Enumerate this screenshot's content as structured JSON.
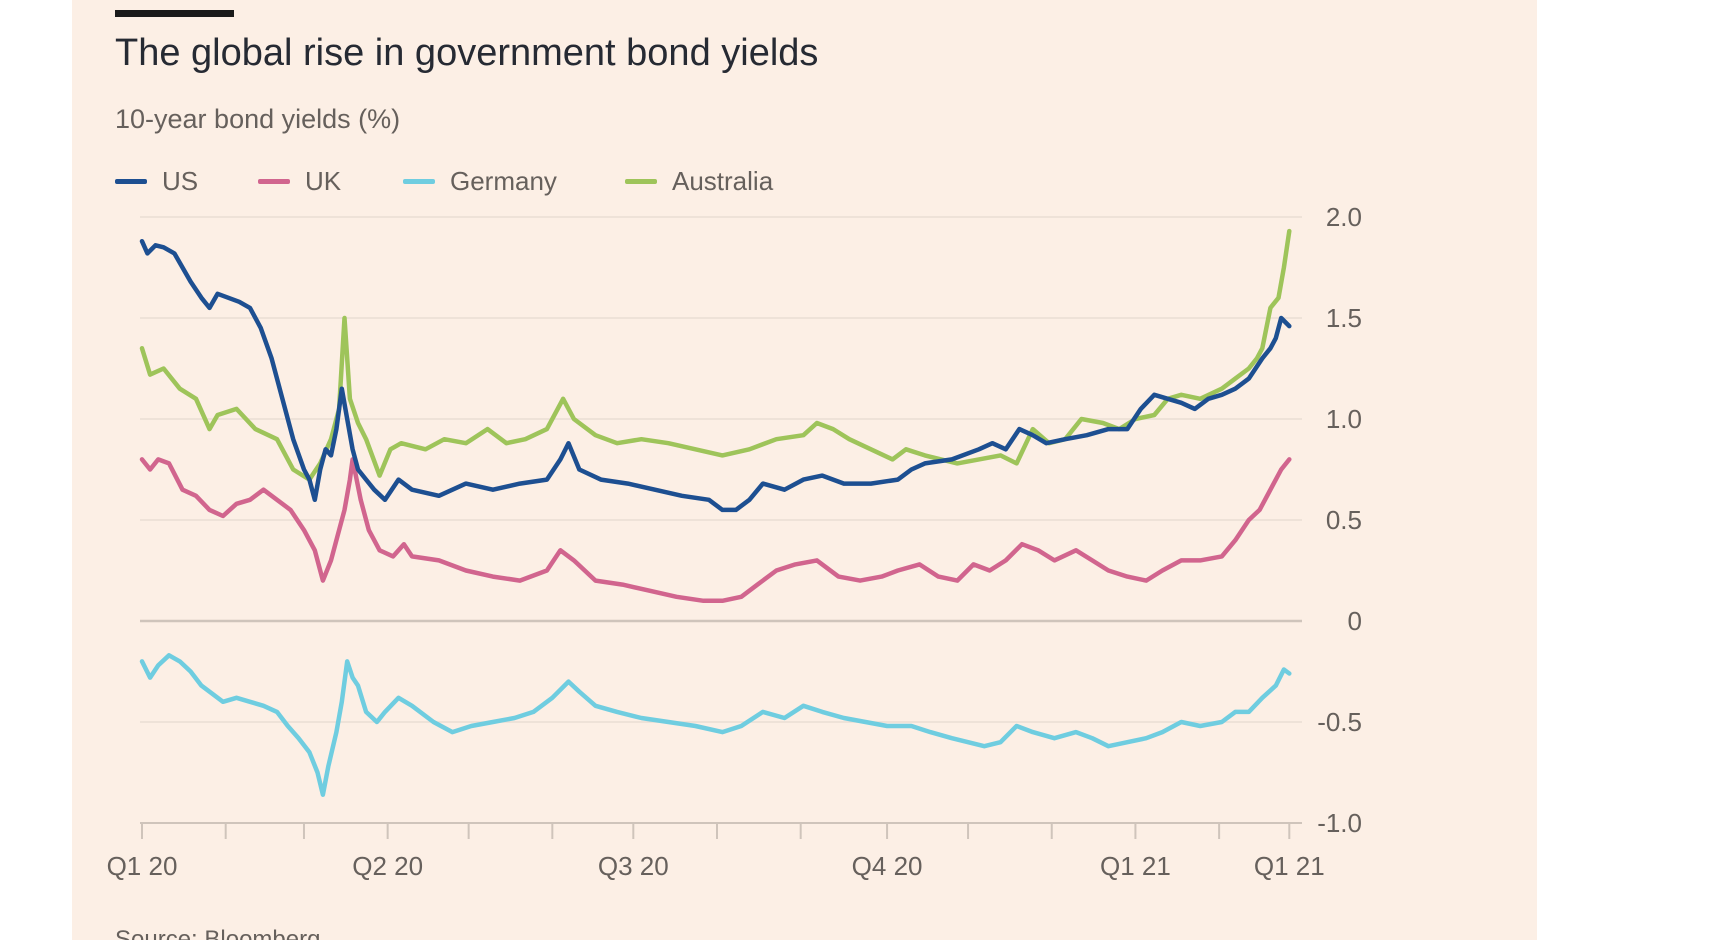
{
  "title": "The global rise in government bond yields",
  "subtitle": "10-year bond yields (%)",
  "source": "Source: Bloomberg",
  "colors": {
    "background": "#fcefe5",
    "grid": "#e9ddd3",
    "zero_line": "#cfc4bb",
    "tick_text": "#66605c"
  },
  "chart_data": {
    "type": "line",
    "title": "The global rise in government bond yields",
    "subtitle": "10-year bond yields (%)",
    "xlabel": "",
    "ylabel": "10-year bond yields (%)",
    "ylim": [
      -1.0,
      2.0
    ],
    "y_ticks": [
      {
        "value": 2.0,
        "label": "2.0"
      },
      {
        "value": 1.5,
        "label": "1.5"
      },
      {
        "value": 1.0,
        "label": "1.0"
      },
      {
        "value": 0.5,
        "label": "0.5"
      },
      {
        "value": 0,
        "label": "0"
      },
      {
        "value": -0.5,
        "label": "-0.5"
      },
      {
        "value": -1.0,
        "label": "-1.0"
      }
    ],
    "y_axis_side": "right",
    "grid": true,
    "legend_position": "top-left",
    "x_range_days": [
      0,
      426
    ],
    "x_ticks": [
      {
        "day": 0,
        "label": "Q1 20"
      },
      {
        "day": 91,
        "label": "Q2 20"
      },
      {
        "day": 182,
        "label": "Q3 20"
      },
      {
        "day": 276,
        "label": "Q4 20"
      },
      {
        "day": 368,
        "label": "Q1 21"
      },
      {
        "day": 425,
        "label": "Q1 21"
      }
    ],
    "x_minor_tick_days": [
      0,
      31,
      60,
      91,
      121,
      152,
      182,
      213,
      244,
      276,
      306,
      337,
      368,
      399,
      425
    ],
    "series": [
      {
        "name": "Australia",
        "color": "#9ec45a",
        "points": [
          [
            0,
            1.35
          ],
          [
            3,
            1.22
          ],
          [
            8,
            1.25
          ],
          [
            14,
            1.15
          ],
          [
            20,
            1.1
          ],
          [
            25,
            0.95
          ],
          [
            28,
            1.02
          ],
          [
            35,
            1.05
          ],
          [
            42,
            0.95
          ],
          [
            50,
            0.9
          ],
          [
            56,
            0.75
          ],
          [
            62,
            0.7
          ],
          [
            66,
            0.78
          ],
          [
            70,
            0.9
          ],
          [
            73,
            1.05
          ],
          [
            75,
            1.5
          ],
          [
            77,
            1.1
          ],
          [
            80,
            0.98
          ],
          [
            83,
            0.9
          ],
          [
            88,
            0.72
          ],
          [
            92,
            0.85
          ],
          [
            96,
            0.88
          ],
          [
            105,
            0.85
          ],
          [
            112,
            0.9
          ],
          [
            120,
            0.88
          ],
          [
            128,
            0.95
          ],
          [
            135,
            0.88
          ],
          [
            142,
            0.9
          ],
          [
            150,
            0.95
          ],
          [
            156,
            1.1
          ],
          [
            160,
            1.0
          ],
          [
            168,
            0.92
          ],
          [
            176,
            0.88
          ],
          [
            185,
            0.9
          ],
          [
            195,
            0.88
          ],
          [
            205,
            0.85
          ],
          [
            215,
            0.82
          ],
          [
            225,
            0.85
          ],
          [
            235,
            0.9
          ],
          [
            245,
            0.92
          ],
          [
            250,
            0.98
          ],
          [
            256,
            0.95
          ],
          [
            262,
            0.9
          ],
          [
            270,
            0.85
          ],
          [
            278,
            0.8
          ],
          [
            283,
            0.85
          ],
          [
            290,
            0.82
          ],
          [
            296,
            0.8
          ],
          [
            302,
            0.78
          ],
          [
            310,
            0.8
          ],
          [
            318,
            0.82
          ],
          [
            324,
            0.78
          ],
          [
            330,
            0.95
          ],
          [
            336,
            0.88
          ],
          [
            342,
            0.9
          ],
          [
            348,
            1.0
          ],
          [
            356,
            0.98
          ],
          [
            362,
            0.95
          ],
          [
            368,
            1.0
          ],
          [
            375,
            1.02
          ],
          [
            380,
            1.1
          ],
          [
            385,
            1.12
          ],
          [
            392,
            1.1
          ],
          [
            400,
            1.15
          ],
          [
            405,
            1.2
          ],
          [
            410,
            1.25
          ],
          [
            413,
            1.3
          ],
          [
            415,
            1.35
          ],
          [
            418,
            1.55
          ],
          [
            421,
            1.6
          ],
          [
            423,
            1.75
          ],
          [
            425,
            1.93
          ]
        ]
      },
      {
        "name": "UK",
        "color": "#d1658e",
        "points": [
          [
            0,
            0.8
          ],
          [
            3,
            0.75
          ],
          [
            6,
            0.8
          ],
          [
            10,
            0.78
          ],
          [
            15,
            0.65
          ],
          [
            20,
            0.62
          ],
          [
            25,
            0.55
          ],
          [
            30,
            0.52
          ],
          [
            35,
            0.58
          ],
          [
            40,
            0.6
          ],
          [
            45,
            0.65
          ],
          [
            50,
            0.6
          ],
          [
            55,
            0.55
          ],
          [
            60,
            0.45
          ],
          [
            64,
            0.35
          ],
          [
            67,
            0.2
          ],
          [
            70,
            0.3
          ],
          [
            72,
            0.4
          ],
          [
            75,
            0.55
          ],
          [
            77,
            0.7
          ],
          [
            78,
            0.8
          ],
          [
            81,
            0.6
          ],
          [
            84,
            0.45
          ],
          [
            88,
            0.35
          ],
          [
            93,
            0.32
          ],
          [
            97,
            0.38
          ],
          [
            100,
            0.32
          ],
          [
            110,
            0.3
          ],
          [
            120,
            0.25
          ],
          [
            130,
            0.22
          ],
          [
            140,
            0.2
          ],
          [
            150,
            0.25
          ],
          [
            155,
            0.35
          ],
          [
            160,
            0.3
          ],
          [
            168,
            0.2
          ],
          [
            178,
            0.18
          ],
          [
            188,
            0.15
          ],
          [
            198,
            0.12
          ],
          [
            208,
            0.1
          ],
          [
            215,
            0.1
          ],
          [
            222,
            0.12
          ],
          [
            228,
            0.18
          ],
          [
            235,
            0.25
          ],
          [
            242,
            0.28
          ],
          [
            250,
            0.3
          ],
          [
            258,
            0.22
          ],
          [
            266,
            0.2
          ],
          [
            274,
            0.22
          ],
          [
            280,
            0.25
          ],
          [
            288,
            0.28
          ],
          [
            295,
            0.22
          ],
          [
            302,
            0.2
          ],
          [
            308,
            0.28
          ],
          [
            314,
            0.25
          ],
          [
            320,
            0.3
          ],
          [
            326,
            0.38
          ],
          [
            332,
            0.35
          ],
          [
            338,
            0.3
          ],
          [
            346,
            0.35
          ],
          [
            352,
            0.3
          ],
          [
            358,
            0.25
          ],
          [
            365,
            0.22
          ],
          [
            372,
            0.2
          ],
          [
            378,
            0.25
          ],
          [
            385,
            0.3
          ],
          [
            392,
            0.3
          ],
          [
            400,
            0.32
          ],
          [
            405,
            0.4
          ],
          [
            410,
            0.5
          ],
          [
            414,
            0.55
          ],
          [
            418,
            0.65
          ],
          [
            422,
            0.75
          ],
          [
            425,
            0.8
          ]
        ]
      },
      {
        "name": "US",
        "color": "#1d4f91",
        "points": [
          [
            0,
            1.88
          ],
          [
            2,
            1.82
          ],
          [
            5,
            1.86
          ],
          [
            8,
            1.85
          ],
          [
            12,
            1.82
          ],
          [
            15,
            1.75
          ],
          [
            18,
            1.68
          ],
          [
            22,
            1.6
          ],
          [
            25,
            1.55
          ],
          [
            28,
            1.62
          ],
          [
            32,
            1.6
          ],
          [
            36,
            1.58
          ],
          [
            40,
            1.55
          ],
          [
            44,
            1.45
          ],
          [
            48,
            1.3
          ],
          [
            52,
            1.1
          ],
          [
            56,
            0.9
          ],
          [
            60,
            0.75
          ],
          [
            62,
            0.7
          ],
          [
            64,
            0.6
          ],
          [
            66,
            0.75
          ],
          [
            68,
            0.85
          ],
          [
            70,
            0.82
          ],
          [
            72,
            0.95
          ],
          [
            74,
            1.15
          ],
          [
            76,
            1.0
          ],
          [
            78,
            0.85
          ],
          [
            80,
            0.75
          ],
          [
            83,
            0.7
          ],
          [
            86,
            0.65
          ],
          [
            90,
            0.6
          ],
          [
            95,
            0.7
          ],
          [
            100,
            0.65
          ],
          [
            110,
            0.62
          ],
          [
            120,
            0.68
          ],
          [
            130,
            0.65
          ],
          [
            140,
            0.68
          ],
          [
            150,
            0.7
          ],
          [
            155,
            0.8
          ],
          [
            158,
            0.88
          ],
          [
            162,
            0.75
          ],
          [
            170,
            0.7
          ],
          [
            180,
            0.68
          ],
          [
            190,
            0.65
          ],
          [
            200,
            0.62
          ],
          [
            210,
            0.6
          ],
          [
            215,
            0.55
          ],
          [
            220,
            0.55
          ],
          [
            225,
            0.6
          ],
          [
            230,
            0.68
          ],
          [
            238,
            0.65
          ],
          [
            245,
            0.7
          ],
          [
            252,
            0.72
          ],
          [
            260,
            0.68
          ],
          [
            270,
            0.68
          ],
          [
            280,
            0.7
          ],
          [
            285,
            0.75
          ],
          [
            290,
            0.78
          ],
          [
            300,
            0.8
          ],
          [
            310,
            0.85
          ],
          [
            315,
            0.88
          ],
          [
            320,
            0.85
          ],
          [
            325,
            0.95
          ],
          [
            330,
            0.92
          ],
          [
            335,
            0.88
          ],
          [
            342,
            0.9
          ],
          [
            350,
            0.92
          ],
          [
            358,
            0.95
          ],
          [
            365,
            0.95
          ],
          [
            370,
            1.05
          ],
          [
            375,
            1.12
          ],
          [
            380,
            1.1
          ],
          [
            385,
            1.08
          ],
          [
            390,
            1.05
          ],
          [
            395,
            1.1
          ],
          [
            400,
            1.12
          ],
          [
            405,
            1.15
          ],
          [
            410,
            1.2
          ],
          [
            415,
            1.3
          ],
          [
            418,
            1.35
          ],
          [
            420,
            1.4
          ],
          [
            422,
            1.5
          ],
          [
            425,
            1.46
          ]
        ]
      },
      {
        "name": "Germany",
        "color": "#6fcde0",
        "points": [
          [
            0,
            -0.2
          ],
          [
            3,
            -0.28
          ],
          [
            6,
            -0.22
          ],
          [
            10,
            -0.17
          ],
          [
            14,
            -0.2
          ],
          [
            18,
            -0.25
          ],
          [
            22,
            -0.32
          ],
          [
            26,
            -0.36
          ],
          [
            30,
            -0.4
          ],
          [
            35,
            -0.38
          ],
          [
            40,
            -0.4
          ],
          [
            45,
            -0.42
          ],
          [
            50,
            -0.45
          ],
          [
            54,
            -0.52
          ],
          [
            58,
            -0.58
          ],
          [
            62,
            -0.65
          ],
          [
            65,
            -0.75
          ],
          [
            67,
            -0.86
          ],
          [
            69,
            -0.72
          ],
          [
            72,
            -0.55
          ],
          [
            74,
            -0.4
          ],
          [
            76,
            -0.2
          ],
          [
            78,
            -0.28
          ],
          [
            80,
            -0.32
          ],
          [
            83,
            -0.45
          ],
          [
            87,
            -0.5
          ],
          [
            90,
            -0.45
          ],
          [
            95,
            -0.38
          ],
          [
            100,
            -0.42
          ],
          [
            108,
            -0.5
          ],
          [
            115,
            -0.55
          ],
          [
            122,
            -0.52
          ],
          [
            130,
            -0.5
          ],
          [
            138,
            -0.48
          ],
          [
            145,
            -0.45
          ],
          [
            152,
            -0.38
          ],
          [
            158,
            -0.3
          ],
          [
            162,
            -0.35
          ],
          [
            168,
            -0.42
          ],
          [
            176,
            -0.45
          ],
          [
            185,
            -0.48
          ],
          [
            195,
            -0.5
          ],
          [
            205,
            -0.52
          ],
          [
            215,
            -0.55
          ],
          [
            222,
            -0.52
          ],
          [
            230,
            -0.45
          ],
          [
            238,
            -0.48
          ],
          [
            245,
            -0.42
          ],
          [
            252,
            -0.45
          ],
          [
            260,
            -0.48
          ],
          [
            268,
            -0.5
          ],
          [
            276,
            -0.52
          ],
          [
            285,
            -0.52
          ],
          [
            292,
            -0.55
          ],
          [
            300,
            -0.58
          ],
          [
            306,
            -0.6
          ],
          [
            312,
            -0.62
          ],
          [
            318,
            -0.6
          ],
          [
            324,
            -0.52
          ],
          [
            330,
            -0.55
          ],
          [
            338,
            -0.58
          ],
          [
            346,
            -0.55
          ],
          [
            352,
            -0.58
          ],
          [
            358,
            -0.62
          ],
          [
            365,
            -0.6
          ],
          [
            372,
            -0.58
          ],
          [
            378,
            -0.55
          ],
          [
            385,
            -0.5
          ],
          [
            392,
            -0.52
          ],
          [
            400,
            -0.5
          ],
          [
            405,
            -0.45
          ],
          [
            410,
            -0.45
          ],
          [
            415,
            -0.38
          ],
          [
            420,
            -0.32
          ],
          [
            423,
            -0.24
          ],
          [
            425,
            -0.26
          ]
        ]
      }
    ]
  }
}
